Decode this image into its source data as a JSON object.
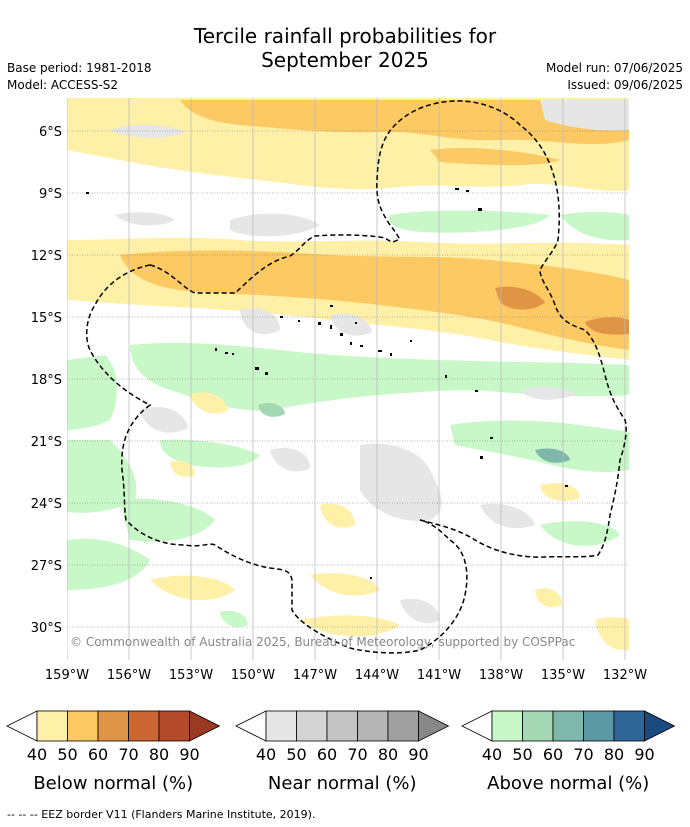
{
  "title_line1": "Tercile rainfall probabilities for",
  "title_line2": "September 2025",
  "base_period": "Base period: 1981-2018",
  "model": "Model: ACCESS-S2",
  "model_run": "Model run: 07/06/2025",
  "issued": "Issued: 09/06/2025",
  "copyright": "© Commonwealth of Australia 2025, Bureau of Meteorology, supported by COSPPac",
  "footer": "--  --  -- EEZ border V11 (Flanders Marine Institute, 2019).",
  "map": {
    "lat_ticks": [
      "6°S",
      "9°S",
      "12°S",
      "15°S",
      "18°S",
      "21°S",
      "24°S",
      "27°S",
      "30°S"
    ],
    "lon_ticks": [
      "159°W",
      "156°W",
      "153°W",
      "150°W",
      "147°W",
      "144°W",
      "141°W",
      "138°W",
      "135°W",
      "132°W"
    ]
  },
  "legends": [
    {
      "title": "Below normal (%)",
      "ticks": [
        "40",
        "50",
        "60",
        "70",
        "80",
        "90"
      ],
      "colors": [
        "#fff0a8",
        "#fdc962",
        "#e09445",
        "#cc6633",
        "#b34a2a",
        "#9a3a22"
      ]
    },
    {
      "title": "Near normal (%)",
      "ticks": [
        "40",
        "50",
        "60",
        "70",
        "80",
        "90"
      ],
      "colors": [
        "#e6e6e6",
        "#d4d4d4",
        "#c4c4c4",
        "#b4b4b4",
        "#a0a0a0",
        "#888888"
      ]
    },
    {
      "title": "Above normal (%)",
      "ticks": [
        "40",
        "50",
        "60",
        "70",
        "80",
        "90"
      ],
      "colors": [
        "#c8f7c8",
        "#a4d8b4",
        "#7fb8aa",
        "#5a98a4",
        "#2f6698",
        "#1a4a80"
      ]
    }
  ]
}
